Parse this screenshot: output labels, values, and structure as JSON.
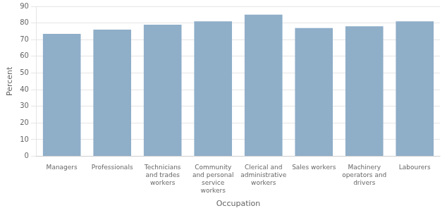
{
  "chart_data": {
    "type": "bar",
    "categories": [
      "Managers",
      "Professionals",
      "Technicians\nand trades\nworkers",
      "Community\nand personal\nservice\nworkers",
      "Clerical and\nadministrative\nworkers",
      "Sales workers",
      "Machinery\noperators and\ndrivers",
      "Labourers"
    ],
    "values": [
      73.5,
      76.0,
      79.0,
      81.0,
      85.0,
      77.0,
      78.0,
      81.0
    ],
    "color": "#8faec8",
    "xlabel": "Occupation",
    "ylabel": "Percent",
    "ylim": [
      0,
      90
    ],
    "yticks": [
      0,
      10,
      20,
      30,
      40,
      50,
      60,
      70,
      80,
      90
    ],
    "grid": true
  }
}
